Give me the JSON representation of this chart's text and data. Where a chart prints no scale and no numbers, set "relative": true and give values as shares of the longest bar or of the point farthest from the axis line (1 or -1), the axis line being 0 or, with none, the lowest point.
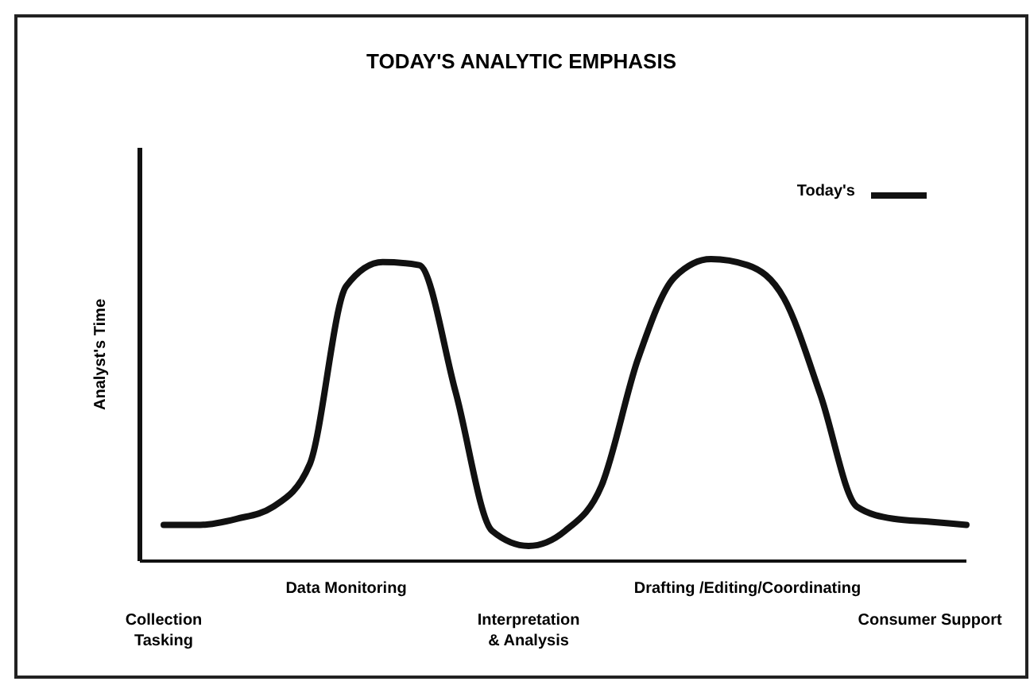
{
  "chart_data": {
    "type": "line",
    "title": "TODAY'S ANALYTIC EMPHASIS",
    "ylabel": "Analyst's Time",
    "relative": true,
    "legend": "top right",
    "categories": [
      "Collection\nTasking",
      null,
      null,
      null,
      null,
      "Data Monitoring",
      null,
      null,
      null,
      null,
      "Interpretation\n& Analysis",
      null,
      null,
      null,
      null,
      null,
      "Drafting /Editing/Coordinating",
      null,
      null,
      null,
      null,
      "Consumer Support",
      null
    ],
    "series": [
      {
        "name": "Today's",
        "color": "#111111",
        "values": [
          0.12,
          0.12,
          0.14,
          0.18,
          0.32,
          0.91,
          0.99,
          0.98,
          0.56,
          0.1,
          0.05,
          0.1,
          0.25,
          0.67,
          0.94,
          1,
          0.98,
          0.87,
          0.55,
          0.18,
          0.14,
          0.13,
          0.12
        ]
      }
    ]
  }
}
